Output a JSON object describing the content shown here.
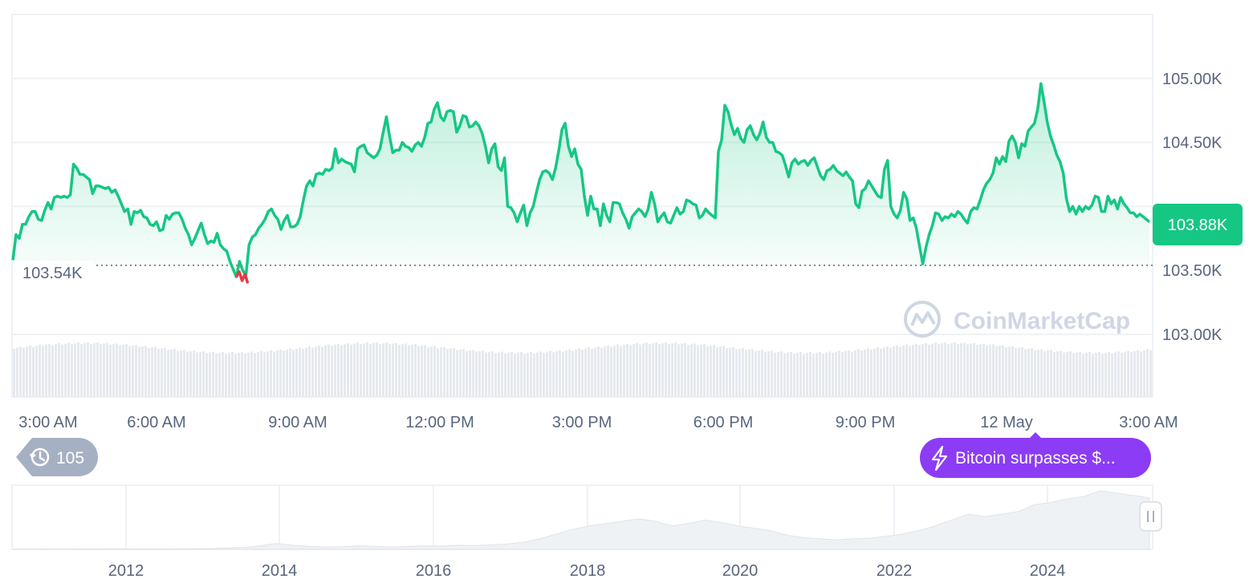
{
  "chart_data": [
    {
      "type": "line",
      "series": [
        {
          "values": [
            103.58,
            103.78,
            103.75,
            103.86,
            103.86,
            103.92,
            103.96,
            103.96,
            103.9,
            103.89,
            103.97,
            104.03,
            103.98,
            104.07,
            104.08,
            104.07,
            104.08,
            104.07,
            104.09,
            104.33,
            104.3,
            104.25,
            104.25,
            104.23,
            104.21,
            104.1,
            104.16,
            104.16,
            104.15,
            104.14,
            104.15,
            104.11,
            104.13,
            104.08,
            104.02,
            103.96,
            103.98,
            103.86,
            103.96,
            103.95,
            103.97,
            103.92,
            103.91,
            103.86,
            103.85,
            103.88,
            103.81,
            103.82,
            103.93,
            103.9,
            103.94,
            103.95,
            103.95,
            103.9,
            103.83,
            103.78,
            103.7,
            103.75,
            103.81,
            103.87,
            103.78,
            103.71,
            103.73,
            103.72,
            103.79,
            103.7,
            103.67,
            103.65,
            103.57,
            103.51,
            103.45,
            103.57,
            103.5,
            103.46,
            103.7,
            103.76,
            103.78,
            103.83,
            103.86,
            103.9,
            103.96,
            103.98,
            103.93,
            103.9,
            103.82,
            103.89,
            103.93,
            103.84,
            103.84,
            103.86,
            103.92,
            104.05,
            104.16,
            104.2,
            104.16,
            104.25,
            104.26,
            104.25,
            104.29,
            104.28,
            104.3,
            104.45,
            104.34,
            104.37,
            104.35,
            104.34,
            104.33,
            104.27,
            104.45,
            104.47,
            104.48,
            104.42,
            104.4,
            104.38,
            104.4,
            104.45,
            104.58,
            104.7,
            104.55,
            104.42,
            104.44,
            104.44,
            104.5,
            104.47,
            104.46,
            104.43,
            104.48,
            104.5,
            104.47,
            104.54,
            104.65,
            104.66,
            104.76,
            104.81,
            104.7,
            104.67,
            104.74,
            104.75,
            104.74,
            104.58,
            104.63,
            104.71,
            104.7,
            104.62,
            104.63,
            104.66,
            104.63,
            104.57,
            104.47,
            104.34,
            104.45,
            104.49,
            104.31,
            104.28,
            104.38,
            104.0,
            103.99,
            103.95,
            103.88,
            103.95,
            104.01,
            103.85,
            103.95,
            104.0,
            104.11,
            104.21,
            104.27,
            104.28,
            104.26,
            104.21,
            104.3,
            104.44,
            104.6,
            104.65,
            104.47,
            104.39,
            104.45,
            104.33,
            104.29,
            104.08,
            103.93,
            104.08,
            103.98,
            103.98,
            103.85,
            104.02,
            103.93,
            103.88,
            104.03,
            104.03,
            104.02,
            103.95,
            103.9,
            103.83,
            103.92,
            103.95,
            103.98,
            103.96,
            103.92,
            103.98,
            104.11,
            104.02,
            103.88,
            103.92,
            103.95,
            103.88,
            103.87,
            103.93,
            103.99,
            103.94,
            103.96,
            104.05,
            104.04,
            104.02,
            104.01,
            103.91,
            103.93,
            103.98,
            103.95,
            103.93,
            103.91,
            104.43,
            104.52,
            104.79,
            104.74,
            104.64,
            104.56,
            104.61,
            104.53,
            104.5,
            104.6,
            104.63,
            104.56,
            104.52,
            104.57,
            104.66,
            104.54,
            104.5,
            104.5,
            104.43,
            104.42,
            104.4,
            104.32,
            104.23,
            104.34,
            104.37,
            104.33,
            104.35,
            104.36,
            104.32,
            104.36,
            104.38,
            104.31,
            104.24,
            104.21,
            104.28,
            104.29,
            104.32,
            104.28,
            104.26,
            104.24,
            104.27,
            104.23,
            104.2,
            104.02,
            103.99,
            104.12,
            104.14,
            104.2,
            104.16,
            104.12,
            104.08,
            104.07,
            104.29,
            104.36,
            104.0,
            103.94,
            103.91,
            103.97,
            104.11,
            104.06,
            103.89,
            103.91,
            103.83,
            103.69,
            103.55,
            103.68,
            103.78,
            103.85,
            103.95,
            103.94,
            103.89,
            103.92,
            103.91,
            103.94,
            103.92,
            103.96,
            103.94,
            103.9,
            103.87,
            103.96,
            103.99,
            103.98,
            104.05,
            104.13,
            104.18,
            104.21,
            104.26,
            104.38,
            104.33,
            104.39,
            104.35,
            104.51,
            104.55,
            104.5,
            104.38,
            104.49,
            104.47,
            104.59,
            104.62,
            104.65,
            104.76,
            104.96,
            104.82,
            104.66,
            104.55,
            104.48,
            104.4,
            104.35,
            104.26,
            104.06,
            103.96,
            104.0,
            103.94,
            104.0,
            103.96,
            104.0,
            103.98,
            104.01,
            104.08,
            104.07,
            103.96,
            103.96,
            104.08,
            104.02,
            104.05,
            103.98,
            104.07,
            104.02,
            103.99,
            103.95,
            103.95,
            103.92,
            103.94,
            103.92,
            103.9,
            103.88
          ],
          "low_segment": [
            103.49,
            103.42,
            103.47,
            103.4
          ]
        }
      ],
      "x_ticks": [
        "3:00 AM",
        "6:00 AM",
        "9:00 AM",
        "12:00 PM",
        "3:00 PM",
        "6:00 PM",
        "9:00 PM",
        "12 May",
        "3:00 AM"
      ],
      "y_ticks": [
        "105.00K",
        "104.50K",
        "103.50K",
        "103.00K"
      ],
      "ylim": [
        102.95,
        105.5
      ],
      "current_price_label": "103.88K",
      "reference_label": "103.54K",
      "reference_value": 103.54,
      "up_color": "#16c784",
      "down_color": "#ea3943",
      "grid": true
    },
    {
      "type": "area",
      "x_ticks": [
        "2012",
        "2014",
        "2016",
        "2018",
        "2020",
        "2022",
        "2024"
      ],
      "values": [
        0.1,
        0.1,
        0.2,
        0.1,
        0.2,
        0.3,
        0.5,
        0.4,
        0.3,
        0.3,
        0.4,
        0.5,
        0.6,
        1.2,
        1.5,
        3.0,
        5.0,
        3.5,
        2.5,
        2.0,
        2.2,
        3.0,
        2.5,
        2.0,
        2.4,
        3.0,
        2.8,
        3.5,
        3.3,
        3.8,
        4.5,
        6.0,
        9.0,
        13.0,
        17.0,
        20.0,
        22.0,
        24.0,
        26.0,
        24.0,
        20.0,
        22.0,
        25.0,
        23.0,
        20.0,
        18.0,
        16.0,
        12.0,
        10.0,
        9.0,
        8.0,
        9.0,
        9.5,
        11.0,
        13.0,
        16.0,
        20.0,
        25.0,
        30.0,
        28.0,
        30.0,
        32.0,
        38.0,
        40.0,
        43.0,
        45.0,
        50.0,
        48.0,
        46.0,
        44.0
      ]
    }
  ],
  "watermark": "CoinMarketCap",
  "history_badge": {
    "icon": "history-icon",
    "count": "105"
  },
  "event_pill": {
    "icon": "lightning-icon",
    "text": "Bitcoin surpasses $...",
    "color": "#8c3cf4"
  },
  "handle_icon": "drag-handle-icon"
}
